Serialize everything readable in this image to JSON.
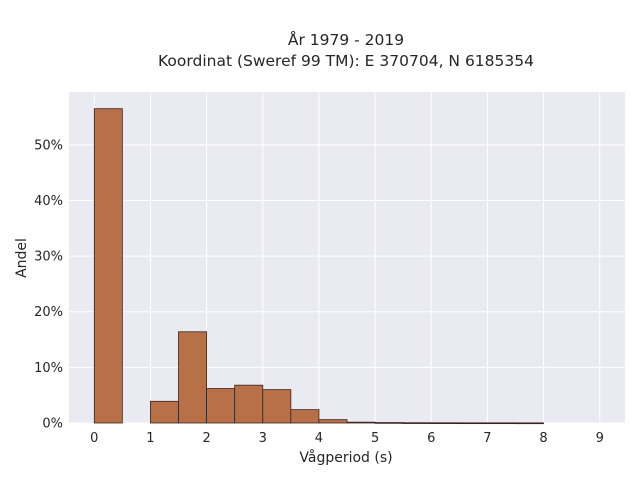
{
  "chart_data": {
    "type": "bar",
    "title_line1": "År 1979 - 2019",
    "title_line2": "Koordinat (Sweref 99 TM): E 370704, N 6185354",
    "xlabel": "Vågperiod (s)",
    "ylabel": "Andel",
    "xlim": [
      -0.45,
      9.45
    ],
    "ylim": [
      0,
      59.5
    ],
    "x_ticks": [
      "0",
      "1",
      "2",
      "3",
      "4",
      "5",
      "6",
      "7",
      "8",
      "9"
    ],
    "y_ticks": [
      "0%",
      "10%",
      "20%",
      "30%",
      "40%",
      "50%"
    ],
    "bins": [
      {
        "from": 0.0,
        "to": 0.5,
        "value": 56.5
      },
      {
        "from": 0.5,
        "to": 1.0,
        "value": 0.0
      },
      {
        "from": 1.0,
        "to": 1.5,
        "value": 3.9
      },
      {
        "from": 1.5,
        "to": 2.0,
        "value": 16.4
      },
      {
        "from": 2.0,
        "to": 2.5,
        "value": 6.2
      },
      {
        "from": 2.5,
        "to": 3.0,
        "value": 6.8
      },
      {
        "from": 3.0,
        "to": 3.5,
        "value": 6.0
      },
      {
        "from": 3.5,
        "to": 4.0,
        "value": 2.4
      },
      {
        "from": 4.0,
        "to": 4.5,
        "value": 0.6
      },
      {
        "from": 4.5,
        "to": 5.0,
        "value": 0.15
      },
      {
        "from": 5.0,
        "to": 5.5,
        "value": 0.08
      },
      {
        "from": 5.5,
        "to": 6.0,
        "value": 0.05
      },
      {
        "from": 6.0,
        "to": 6.5,
        "value": 0.04
      },
      {
        "from": 6.5,
        "to": 7.0,
        "value": 0.03
      },
      {
        "from": 7.0,
        "to": 7.5,
        "value": 0.03
      },
      {
        "from": 7.5,
        "to": 8.0,
        "value": 0.02
      }
    ],
    "grid": true,
    "colors": {
      "bar_fill": "#b87048",
      "bar_edge": "#3a2418",
      "plot_background": "#eaeaf2",
      "grid": "#ffffff"
    }
  }
}
